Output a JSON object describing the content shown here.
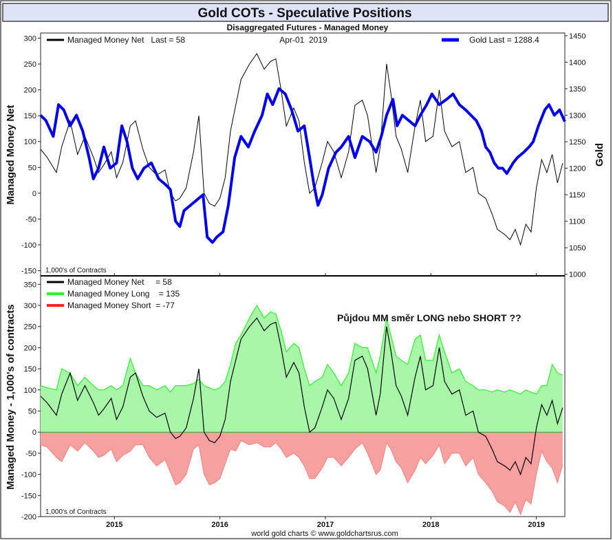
{
  "title": "Gold COTs - Speculative Positions",
  "subtitle": "Disaggregated Futures - Managed Money",
  "footer": "world gold charts © www.goldchartsrus.com",
  "colors": {
    "net": "#000000",
    "gold": "#0000ee",
    "long_line": "#33ee33",
    "long_fill": "#a8f7a8",
    "short_line": "#ff4444",
    "short_fill": "#f7a0a0",
    "title_bg": "#dfe3f7"
  },
  "chart_data": [
    {
      "type": "line",
      "name": "top-panel",
      "date_label": "Apr-01  2019",
      "legend": [
        {
          "label": "Managed Money Net   Last = 58",
          "color": "#000000"
        },
        {
          "label": "Gold Last = 1288.4",
          "color": "#0000ee"
        }
      ],
      "ylabel_left": "Managed Money Net",
      "ylabel_right": "Gold",
      "unit_note": "1,000's of Contracts",
      "ylim_left": [
        -150,
        300
      ],
      "ylim_right": [
        1000,
        1450
      ],
      "yticks_left": [
        "300",
        "250",
        "200",
        "150",
        "100",
        "50",
        "0",
        "-50",
        "-100",
        "-150"
      ],
      "yticks_right": [
        "1450",
        "1400",
        "1350",
        "1300",
        "1250",
        "1200",
        "1150",
        "1100",
        "1050",
        "1000"
      ],
      "xlim": [
        2014.3,
        2019.27
      ],
      "series": [
        {
          "name": "Managed Money Net",
          "axis": "left",
          "x": [
            2014.3,
            2014.36,
            2014.45,
            2014.5,
            2014.58,
            2014.65,
            2014.72,
            2014.8,
            2014.85,
            2014.9,
            2014.97,
            2015.02,
            2015.08,
            2015.15,
            2015.2,
            2015.27,
            2015.33,
            2015.4,
            2015.48,
            2015.53,
            2015.58,
            2015.62,
            2015.68,
            2015.75,
            2015.8,
            2015.85,
            2015.9,
            2015.95,
            2016.0,
            2016.05,
            2016.1,
            2016.15,
            2016.2,
            2016.28,
            2016.35,
            2016.42,
            2016.48,
            2016.53,
            2016.58,
            2016.63,
            2016.7,
            2016.75,
            2016.8,
            2016.85,
            2016.9,
            2016.97,
            2017.02,
            2017.08,
            2017.15,
            2017.22,
            2017.28,
            2017.35,
            2017.4,
            2017.48,
            2017.52,
            2017.58,
            2017.62,
            2017.67,
            2017.72,
            2017.78,
            2017.85,
            2017.9,
            2017.95,
            2018.02,
            2018.08,
            2018.13,
            2018.2,
            2018.27,
            2018.33,
            2018.4,
            2018.45,
            2018.52,
            2018.58,
            2018.63,
            2018.7,
            2018.75,
            2018.8,
            2018.85,
            2018.9,
            2018.95,
            2019.0,
            2019.05,
            2019.1,
            2019.15,
            2019.2,
            2019.25
          ],
          "values": [
            85,
            70,
            40,
            90,
            140,
            75,
            110,
            70,
            40,
            55,
            80,
            30,
            60,
            130,
            140,
            85,
            50,
            35,
            45,
            0,
            -15,
            -10,
            10,
            80,
            150,
            0,
            -20,
            -25,
            -10,
            30,
            120,
            170,
            220,
            250,
            270,
            240,
            255,
            260,
            200,
            130,
            165,
            140,
            60,
            0,
            10,
            60,
            100,
            80,
            30,
            80,
            170,
            180,
            150,
            40,
            90,
            250,
            195,
            110,
            85,
            40,
            130,
            180,
            100,
            110,
            200,
            120,
            90,
            100,
            40,
            50,
            0,
            -10,
            -40,
            -70,
            -80,
            -90,
            -70,
            -100,
            -60,
            -75,
            10,
            65,
            40,
            75,
            20,
            58
          ]
        },
        {
          "name": "Gold",
          "axis": "right",
          "x": [
            2014.3,
            2014.35,
            2014.42,
            2014.47,
            2014.52,
            2014.58,
            2014.64,
            2014.7,
            2014.76,
            2014.8,
            2014.85,
            2014.9,
            2014.96,
            2015.02,
            2015.07,
            2015.12,
            2015.17,
            2015.22,
            2015.28,
            2015.35,
            2015.42,
            2015.48,
            2015.53,
            2015.58,
            2015.62,
            2015.66,
            2015.72,
            2015.78,
            2015.84,
            2015.88,
            2015.93,
            2015.97,
            2016.03,
            2016.08,
            2016.14,
            2016.2,
            2016.27,
            2016.33,
            2016.4,
            2016.45,
            2016.5,
            2016.56,
            2016.62,
            2016.68,
            2016.74,
            2016.8,
            2016.85,
            2016.89,
            2016.93,
            2016.97,
            2017.03,
            2017.1,
            2017.15,
            2017.22,
            2017.28,
            2017.35,
            2017.42,
            2017.48,
            2017.53,
            2017.58,
            2017.64,
            2017.68,
            2017.73,
            2017.79,
            2017.85,
            2017.9,
            2017.96,
            2018.01,
            2018.08,
            2018.15,
            2018.21,
            2018.27,
            2018.33,
            2018.38,
            2018.43,
            2018.48,
            2018.52,
            2018.56,
            2018.6,
            2018.64,
            2018.68,
            2018.72,
            2018.78,
            2018.82,
            2018.88,
            2018.93,
            2018.97,
            2019.02,
            2019.08,
            2019.12,
            2019.17,
            2019.22,
            2019.27
          ],
          "values": [
            1300,
            1290,
            1260,
            1320,
            1310,
            1280,
            1300,
            1270,
            1220,
            1180,
            1200,
            1240,
            1200,
            1210,
            1280,
            1250,
            1200,
            1180,
            1200,
            1210,
            1180,
            1170,
            1160,
            1100,
            1090,
            1120,
            1130,
            1140,
            1150,
            1070,
            1060,
            1070,
            1080,
            1130,
            1220,
            1260,
            1240,
            1270,
            1300,
            1340,
            1320,
            1350,
            1340,
            1310,
            1270,
            1280,
            1220,
            1170,
            1130,
            1150,
            1200,
            1230,
            1240,
            1260,
            1220,
            1260,
            1250,
            1230,
            1260,
            1300,
            1330,
            1280,
            1300,
            1290,
            1280,
            1300,
            1320,
            1340,
            1320,
            1330,
            1340,
            1320,
            1310,
            1300,
            1290,
            1270,
            1240,
            1230,
            1210,
            1200,
            1200,
            1190,
            1210,
            1220,
            1230,
            1240,
            1250,
            1280,
            1310,
            1320,
            1300,
            1310,
            1288
          ]
        }
      ]
    },
    {
      "type": "area",
      "name": "bottom-panel",
      "legend": [
        {
          "label": "Managed Money Net     = 58",
          "color": "#000000"
        },
        {
          "label": "Managed Money Long    = 135",
          "color": "#33ee33"
        },
        {
          "label": "Managed Money Short  = -77",
          "color": "#ff2222"
        }
      ],
      "annotation": "Půjdou MM směr LONG nebo SHORT ??",
      "ylabel": "Managed Money - 1,000's of contracts",
      "unit_note": "1,000's of Contracts",
      "ylim": [
        -200,
        350
      ],
      "yticks": [
        "350",
        "300",
        "250",
        "200",
        "150",
        "100",
        "50",
        "0",
        "-50",
        "-100",
        "-150",
        "-200"
      ],
      "xticks": [
        "2015",
        "2016",
        "2017",
        "2018",
        "2019"
      ],
      "xtick_values": [
        2015,
        2016,
        2017,
        2018,
        2019
      ],
      "xlim": [
        2014.3,
        2019.27
      ],
      "series": [
        {
          "name": "Managed Money Long",
          "x": [
            2014.3,
            2014.36,
            2014.45,
            2014.5,
            2014.58,
            2014.65,
            2014.72,
            2014.8,
            2014.85,
            2014.9,
            2014.97,
            2015.02,
            2015.08,
            2015.15,
            2015.2,
            2015.27,
            2015.33,
            2015.4,
            2015.48,
            2015.53,
            2015.58,
            2015.62,
            2015.68,
            2015.75,
            2015.8,
            2015.85,
            2015.9,
            2015.95,
            2016.0,
            2016.05,
            2016.1,
            2016.15,
            2016.2,
            2016.28,
            2016.35,
            2016.42,
            2016.48,
            2016.53,
            2016.58,
            2016.63,
            2016.7,
            2016.75,
            2016.8,
            2016.85,
            2016.9,
            2016.97,
            2017.02,
            2017.08,
            2017.15,
            2017.22,
            2017.28,
            2017.35,
            2017.4,
            2017.48,
            2017.52,
            2017.58,
            2017.62,
            2017.67,
            2017.72,
            2017.78,
            2017.85,
            2017.9,
            2017.95,
            2018.02,
            2018.08,
            2018.13,
            2018.2,
            2018.27,
            2018.33,
            2018.4,
            2018.45,
            2018.52,
            2018.58,
            2018.63,
            2018.7,
            2018.75,
            2018.8,
            2018.85,
            2018.9,
            2018.95,
            2019.0,
            2019.05,
            2019.1,
            2019.15,
            2019.2,
            2019.25
          ],
          "values": [
            110,
            105,
            100,
            150,
            140,
            110,
            130,
            110,
            100,
            100,
            110,
            100,
            110,
            175,
            140,
            110,
            110,
            100,
            110,
            95,
            110,
            110,
            110,
            115,
            125,
            110,
            105,
            100,
            105,
            120,
            160,
            210,
            230,
            270,
            300,
            270,
            285,
            280,
            240,
            190,
            210,
            200,
            150,
            110,
            120,
            130,
            160,
            140,
            110,
            140,
            210,
            200,
            200,
            140,
            180,
            270,
            230,
            180,
            170,
            160,
            220,
            230,
            170,
            170,
            230,
            190,
            140,
            150,
            120,
            110,
            100,
            100,
            95,
            100,
            95,
            100,
            95,
            90,
            100,
            95,
            90,
            110,
            110,
            160,
            140,
            135
          ]
        },
        {
          "name": "Managed Money Short",
          "x": [
            2014.3,
            2014.36,
            2014.45,
            2014.5,
            2014.58,
            2014.65,
            2014.72,
            2014.8,
            2014.85,
            2014.9,
            2014.97,
            2015.02,
            2015.08,
            2015.15,
            2015.2,
            2015.27,
            2015.33,
            2015.4,
            2015.48,
            2015.53,
            2015.58,
            2015.62,
            2015.68,
            2015.75,
            2015.8,
            2015.85,
            2015.9,
            2015.95,
            2016.0,
            2016.05,
            2016.1,
            2016.15,
            2016.2,
            2016.28,
            2016.35,
            2016.42,
            2016.48,
            2016.53,
            2016.58,
            2016.63,
            2016.7,
            2016.75,
            2016.8,
            2016.85,
            2016.9,
            2016.97,
            2017.02,
            2017.08,
            2017.15,
            2017.22,
            2017.28,
            2017.35,
            2017.4,
            2017.48,
            2017.52,
            2017.58,
            2017.62,
            2017.67,
            2017.72,
            2017.78,
            2017.85,
            2017.9,
            2017.95,
            2018.02,
            2018.08,
            2018.13,
            2018.2,
            2018.27,
            2018.33,
            2018.4,
            2018.45,
            2018.52,
            2018.58,
            2018.63,
            2018.7,
            2018.75,
            2018.8,
            2018.85,
            2018.9,
            2018.95,
            2019.0,
            2019.05,
            2019.1,
            2019.15,
            2019.2,
            2019.25
          ],
          "values": [
            -30,
            -35,
            -60,
            -70,
            -30,
            -45,
            -25,
            -45,
            -60,
            -55,
            -40,
            -70,
            -55,
            -45,
            -30,
            -30,
            -60,
            -80,
            -65,
            -95,
            -125,
            -120,
            -100,
            -40,
            -30,
            -100,
            -125,
            -120,
            -110,
            -75,
            -40,
            -45,
            -20,
            -30,
            -25,
            -35,
            -35,
            -25,
            -40,
            -60,
            -50,
            -60,
            -80,
            -110,
            -110,
            -85,
            -60,
            -60,
            -80,
            -60,
            -40,
            -25,
            -50,
            -100,
            -90,
            -25,
            -40,
            -70,
            -85,
            -120,
            -90,
            -60,
            -75,
            -55,
            -30,
            -75,
            -50,
            -50,
            -80,
            -60,
            -100,
            -120,
            -140,
            -165,
            -175,
            -190,
            -165,
            -195,
            -160,
            -170,
            -100,
            -45,
            -70,
            -85,
            -120,
            -77
          ]
        },
        {
          "name": "Managed Money Net",
          "x": [
            2014.3,
            2014.36,
            2014.45,
            2014.5,
            2014.58,
            2014.65,
            2014.72,
            2014.8,
            2014.85,
            2014.9,
            2014.97,
            2015.02,
            2015.08,
            2015.15,
            2015.2,
            2015.27,
            2015.33,
            2015.4,
            2015.48,
            2015.53,
            2015.58,
            2015.62,
            2015.68,
            2015.75,
            2015.8,
            2015.85,
            2015.9,
            2015.95,
            2016.0,
            2016.05,
            2016.1,
            2016.15,
            2016.2,
            2016.28,
            2016.35,
            2016.42,
            2016.48,
            2016.53,
            2016.58,
            2016.63,
            2016.7,
            2016.75,
            2016.8,
            2016.85,
            2016.9,
            2016.97,
            2017.02,
            2017.08,
            2017.15,
            2017.22,
            2017.28,
            2017.35,
            2017.4,
            2017.48,
            2017.52,
            2017.58,
            2017.62,
            2017.67,
            2017.72,
            2017.78,
            2017.85,
            2017.9,
            2017.95,
            2018.02,
            2018.08,
            2018.13,
            2018.2,
            2018.27,
            2018.33,
            2018.4,
            2018.45,
            2018.52,
            2018.58,
            2018.63,
            2018.7,
            2018.75,
            2018.8,
            2018.85,
            2018.9,
            2018.95,
            2019.0,
            2019.05,
            2019.1,
            2019.15,
            2019.2,
            2019.25
          ],
          "values": [
            85,
            70,
            40,
            90,
            140,
            75,
            110,
            70,
            40,
            55,
            80,
            30,
            60,
            130,
            140,
            85,
            50,
            35,
            45,
            0,
            -15,
            -10,
            10,
            80,
            150,
            0,
            -20,
            -25,
            -10,
            30,
            120,
            170,
            220,
            250,
            270,
            240,
            255,
            260,
            200,
            130,
            165,
            140,
            60,
            0,
            10,
            60,
            100,
            80,
            30,
            80,
            170,
            180,
            150,
            40,
            90,
            250,
            195,
            110,
            85,
            40,
            130,
            180,
            100,
            110,
            200,
            120,
            90,
            100,
            40,
            50,
            0,
            -10,
            -40,
            -70,
            -80,
            -90,
            -70,
            -100,
            -60,
            -75,
            10,
            65,
            40,
            75,
            20,
            58
          ]
        }
      ]
    }
  ]
}
